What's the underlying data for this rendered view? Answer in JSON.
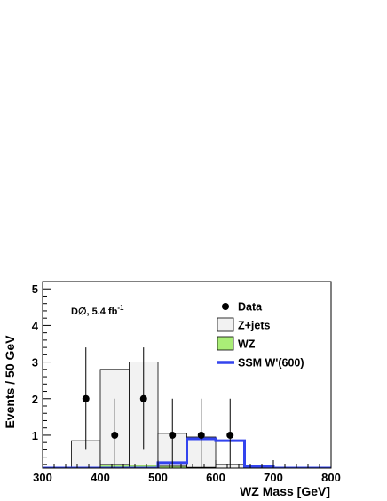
{
  "chart_data": {
    "type": "histogram",
    "xlabel": "WZ Mass [GeV]",
    "ylabel": "Events / 50 GeV",
    "xlim": [
      300,
      800
    ],
    "ylim": [
      0.1,
      5.2
    ],
    "x_ticks": [
      300,
      400,
      500,
      600,
      700,
      800
    ],
    "y_ticks": [
      1,
      2,
      3,
      4,
      5
    ],
    "bin_edges": [
      300,
      350,
      400,
      450,
      500,
      550,
      600,
      650,
      700,
      750,
      800
    ],
    "annotation": {
      "experiment": "D∅, 5.4 fb",
      "superscript": "-1"
    },
    "legend_position": "top-right",
    "series": [
      {
        "name": "Z+jets",
        "style": "filled-hist",
        "fill": "#f2f2f2",
        "stroke": "#000000",
        "values": [
          0,
          0.85,
          2.8,
          3.0,
          1.05,
          0.95,
          0.2,
          0.1,
          0.1,
          0.1
        ]
      },
      {
        "name": "WZ",
        "style": "filled-hist",
        "fill": "#aaee77",
        "stroke": "#000000",
        "values": [
          0,
          0,
          0.2,
          0.18,
          0.15,
          0.12,
          0.1,
          0,
          0,
          0
        ]
      },
      {
        "name": "SSM W'(600)",
        "style": "line-hist",
        "stroke": "#3344ee",
        "values": [
          0.1,
          0.1,
          0.1,
          0.1,
          0.25,
          0.9,
          0.85,
          0.15,
          0.1,
          0.1
        ]
      },
      {
        "name": "Data",
        "style": "points",
        "x": [
          375,
          425,
          475,
          525,
          575,
          625
        ],
        "y": [
          2,
          1,
          2,
          1,
          1,
          1
        ],
        "err_low": [
          1.4,
          1.0,
          1.4,
          1.0,
          1.0,
          1.0
        ],
        "err_high": [
          1.4,
          1.0,
          1.4,
          1.0,
          1.0,
          1.0
        ]
      }
    ],
    "legend": [
      {
        "label": "Data",
        "symbol": "point"
      },
      {
        "label": "Z+jets",
        "symbol": "box",
        "fill": "#f2f2f2"
      },
      {
        "label": "WZ",
        "symbol": "box",
        "fill": "#aaee77"
      },
      {
        "label": "SSM W'(600)",
        "symbol": "line",
        "stroke": "#3344ee"
      }
    ]
  }
}
